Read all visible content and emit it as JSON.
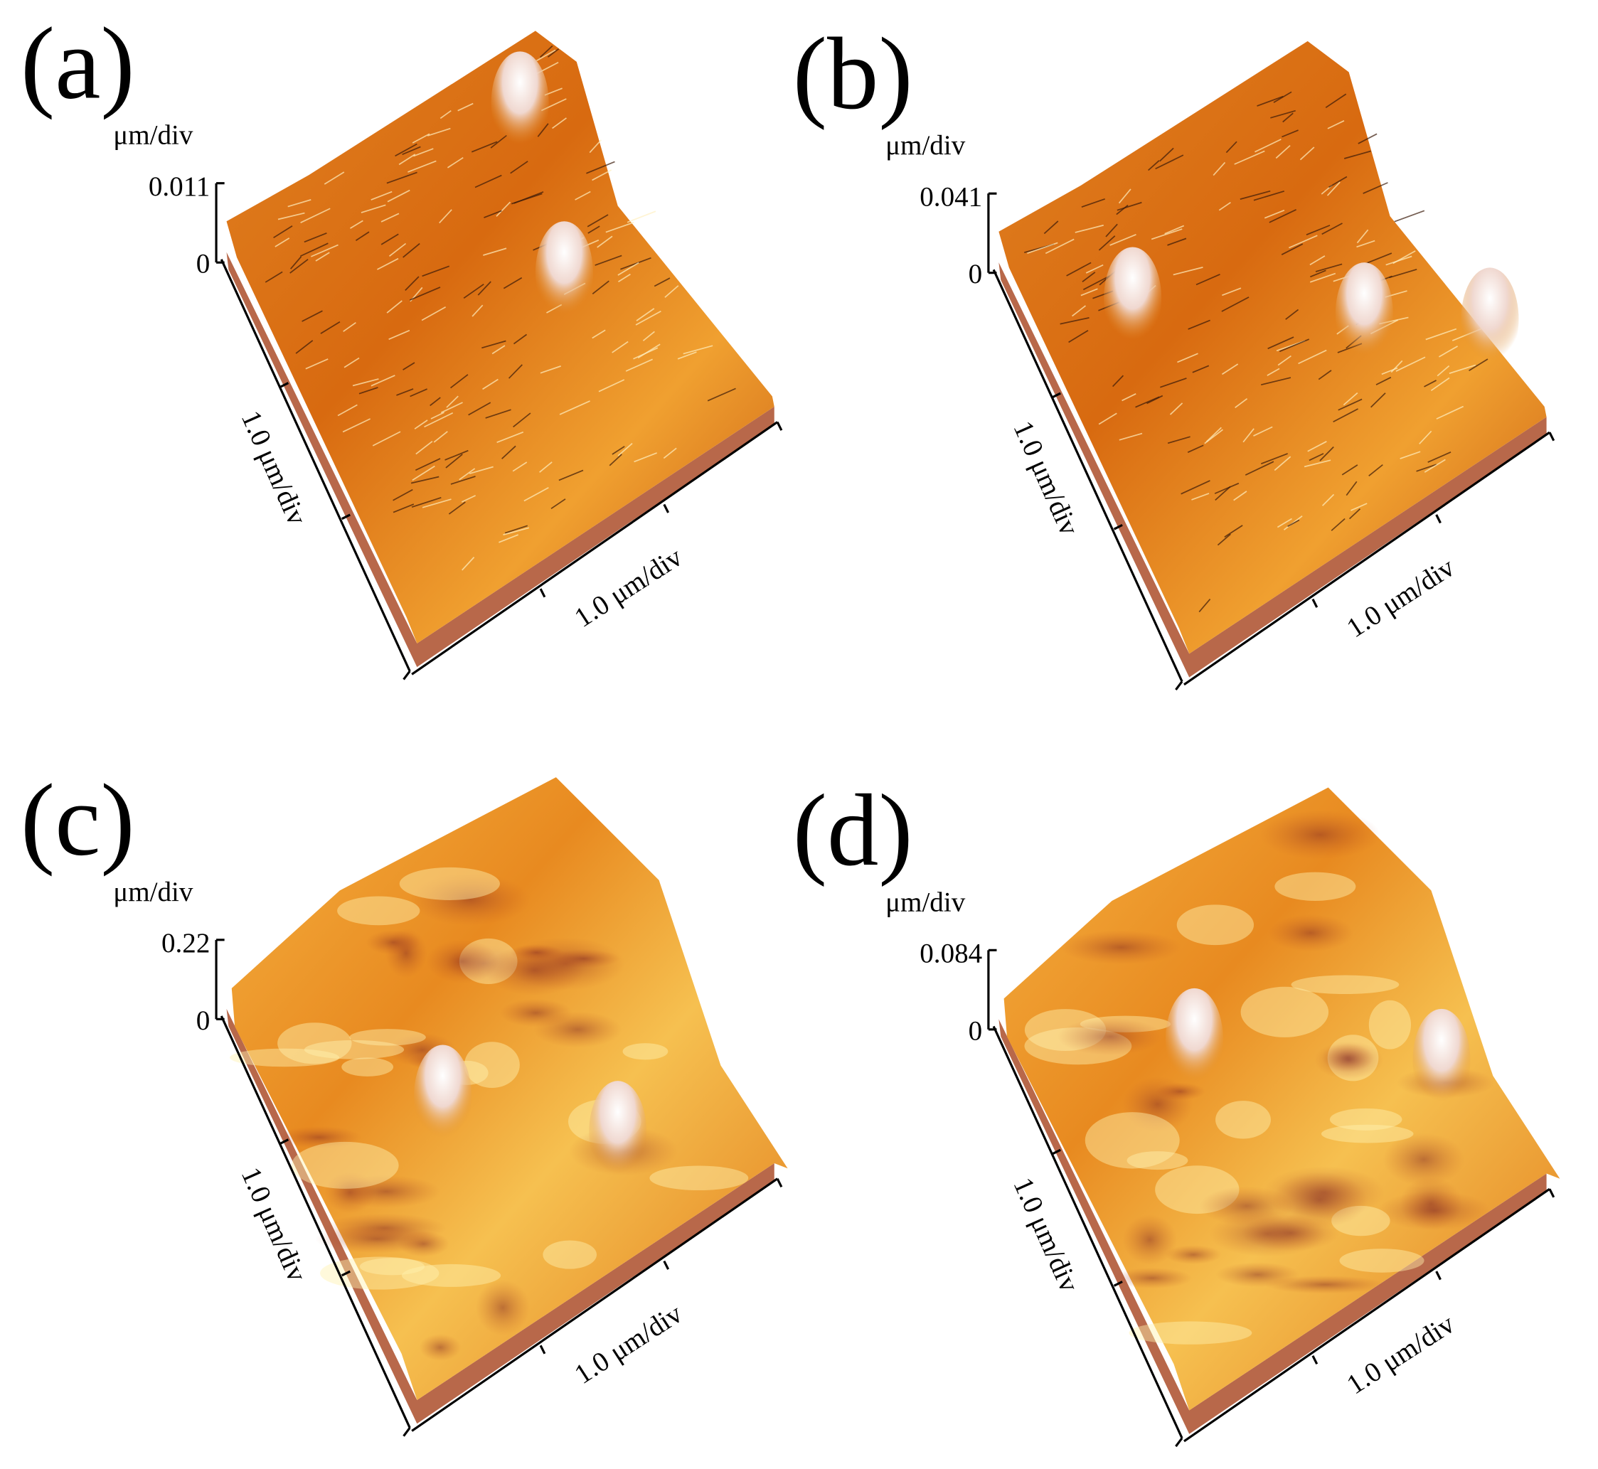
{
  "panels": [
    {
      "label": "(a)",
      "z_unit": "μm/div",
      "z_max": "0.011",
      "z_zero": "0",
      "y_axis": "1.0 μm/div",
      "x_axis": "1.0 μm/div"
    },
    {
      "label": "(b)",
      "z_unit": "μm/div",
      "z_max": "0.041",
      "z_zero": "0",
      "y_axis": "1.0 μm/div",
      "x_axis": "1.0 μm/div"
    },
    {
      "label": "(c)",
      "z_unit": "μm/div",
      "z_max": "0.22",
      "z_zero": "0",
      "y_axis": "1.0 μm/div",
      "x_axis": "1.0 μm/div"
    },
    {
      "label": "(d)",
      "z_unit": "μm/div",
      "z_max": "0.084",
      "z_zero": "0",
      "y_axis": "1.0 μm/div",
      "x_axis": "1.0 μm/div"
    }
  ]
}
